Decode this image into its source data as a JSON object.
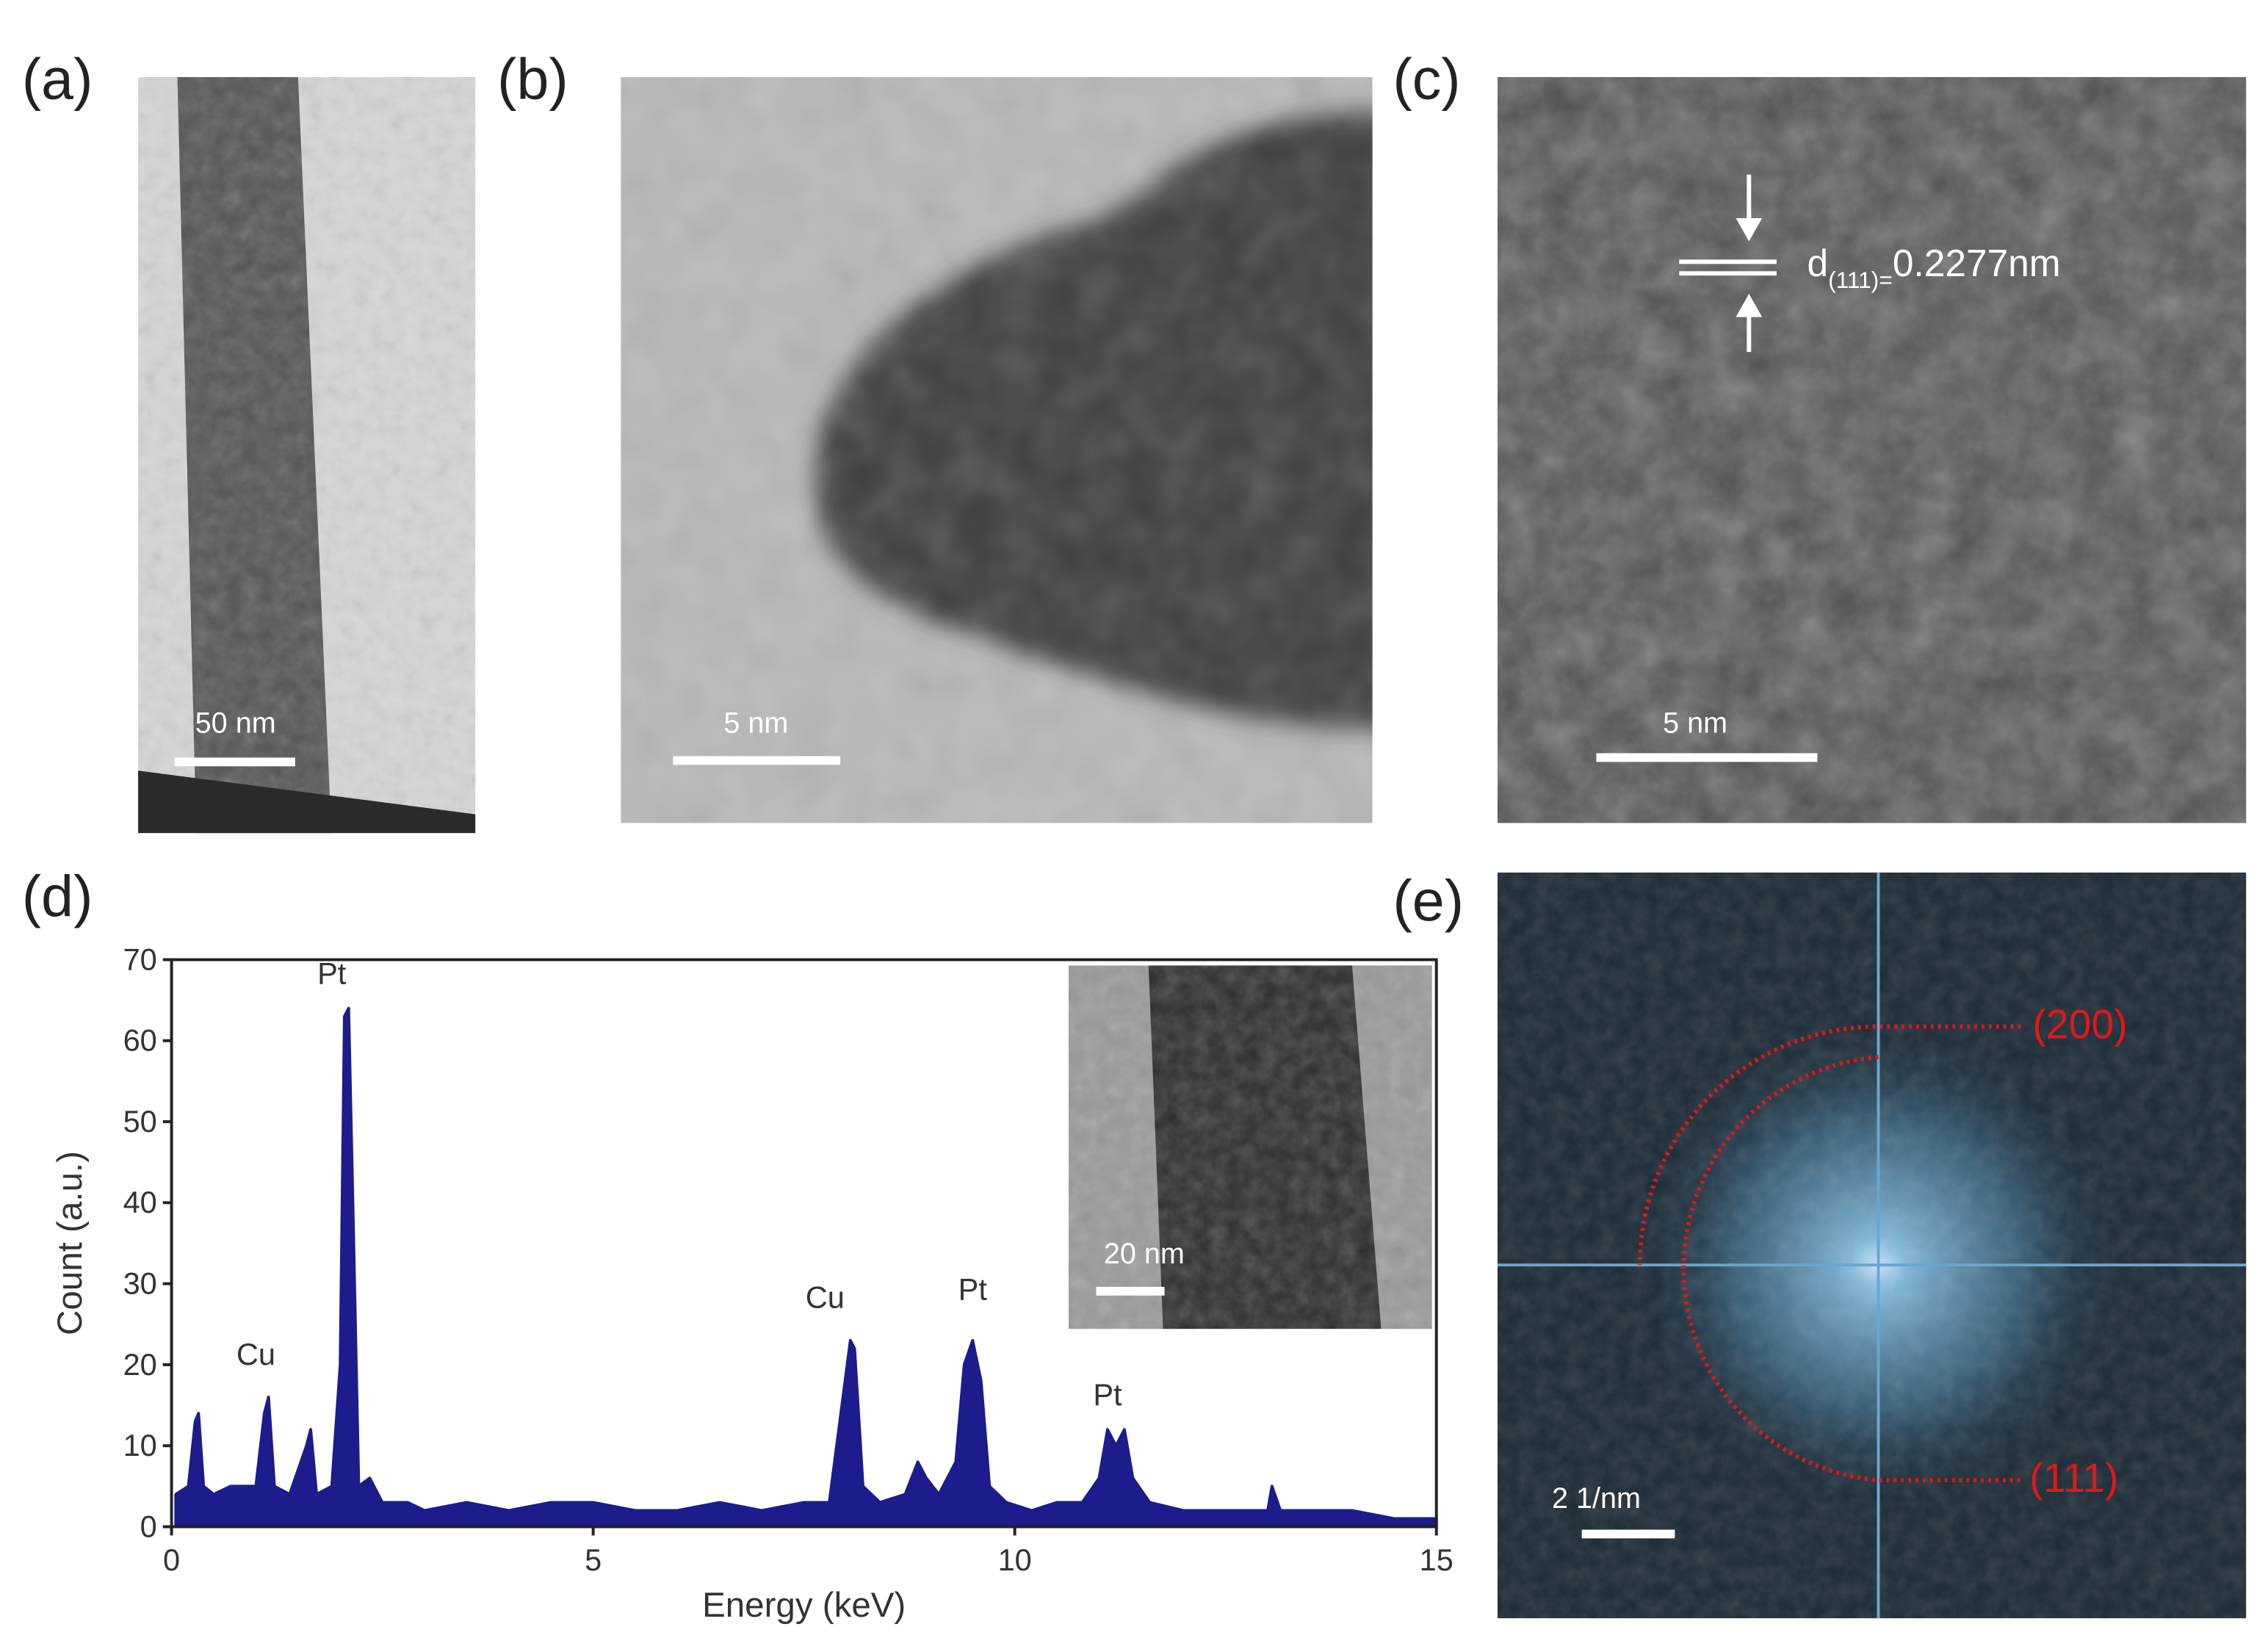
{
  "panels": {
    "a": {
      "label": "(a)",
      "scale_bar": "50 nm"
    },
    "b": {
      "label": "(b)",
      "scale_bar": "5 nm"
    },
    "c": {
      "label": "(c)",
      "scale_bar": "5 nm",
      "spacing": {
        "symbol": "d",
        "subscript": "(111)=",
        "value": "0.2277nm"
      }
    },
    "d": {
      "label": "(d)",
      "inset_scale_bar": "20 nm"
    },
    "e": {
      "label": "(e)",
      "scale_bar": "2 1/nm",
      "rings": [
        "(200)",
        "(111)"
      ]
    }
  },
  "chart_data": {
    "type": "area",
    "x_label": "Energy (keV)",
    "y_label": "Count (a.u.)",
    "x": [
      0.05,
      0.2,
      0.28,
      0.32,
      0.38,
      0.5,
      0.7,
      0.9,
      1.0,
      1.1,
      1.15,
      1.22,
      1.4,
      1.6,
      1.65,
      1.72,
      1.9,
      2.0,
      2.05,
      2.1,
      2.15,
      2.22,
      2.35,
      2.5,
      2.8,
      3.0,
      3.5,
      4.0,
      4.5,
      5.0,
      5.5,
      6.0,
      6.5,
      7.0,
      7.5,
      7.8,
      7.95,
      8.05,
      8.1,
      8.2,
      8.4,
      8.7,
      8.85,
      8.95,
      9.1,
      9.3,
      9.4,
      9.5,
      9.6,
      9.7,
      9.9,
      10.2,
      10.5,
      10.8,
      11.0,
      11.1,
      11.2,
      11.3,
      11.4,
      11.6,
      12.0,
      12.5,
      13.0,
      13.05,
      13.15,
      13.5,
      14.0,
      14.5,
      15.0
    ],
    "values": [
      4,
      5,
      13,
      14,
      5,
      4,
      5,
      5,
      5,
      14,
      16,
      5,
      4,
      10,
      12,
      4,
      5,
      20,
      63,
      64,
      40,
      5,
      6,
      3,
      3,
      2,
      3,
      2,
      3,
      3,
      2,
      2,
      3,
      2,
      3,
      3,
      15,
      23,
      22,
      5,
      3,
      4,
      8,
      6,
      4,
      8,
      20,
      23,
      18,
      5,
      3,
      2,
      3,
      3,
      6,
      12,
      10,
      12,
      6,
      3,
      2,
      2,
      2,
      5,
      2,
      2,
      2,
      1,
      1
    ],
    "color": "#1c1c8c",
    "xlim": [
      0,
      15
    ],
    "ylim": [
      0,
      70
    ],
    "xticks": [
      0,
      5,
      10,
      15
    ],
    "yticks": [
      0,
      10,
      20,
      30,
      40,
      50,
      60,
      70
    ],
    "annotations": [
      {
        "text": "Cu",
        "x": 1.0,
        "y": 20
      },
      {
        "text": "Pt",
        "x": 1.9,
        "y": 67
      },
      {
        "text": "Cu",
        "x": 7.75,
        "y": 27
      },
      {
        "text": "Pt",
        "x": 9.5,
        "y": 28
      },
      {
        "text": "Pt",
        "x": 11.1,
        "y": 15
      }
    ]
  }
}
